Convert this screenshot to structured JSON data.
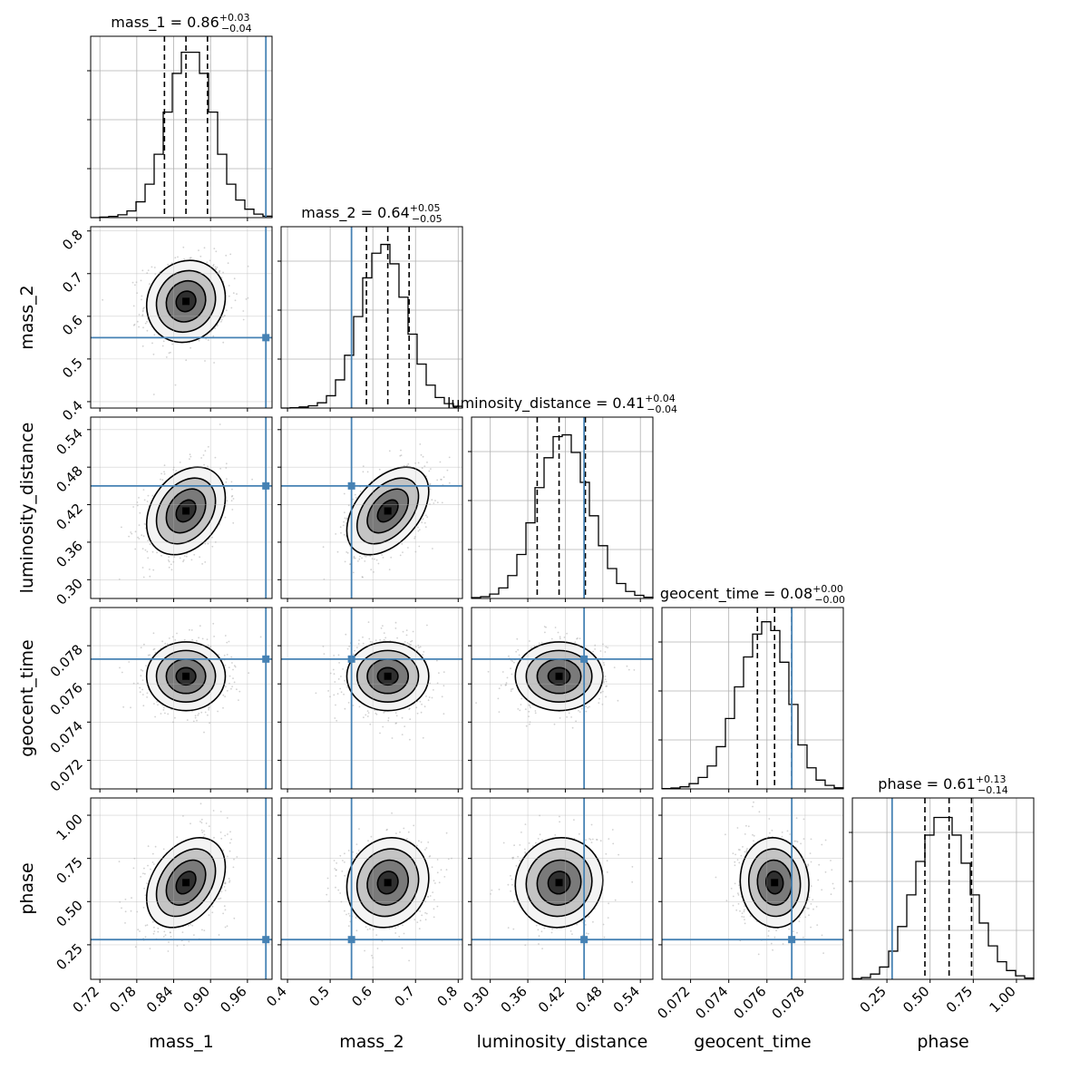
{
  "chart_data": {
    "type": "corner",
    "parameters": [
      {
        "key": "mass_1",
        "label": "mass_1",
        "title": "mass_1 = 0.86",
        "median": 0.86,
        "err_plus": "+0.03",
        "err_minus": "−0.04",
        "q_low": 0.825,
        "q_high": 0.895,
        "range": [
          0.705,
          1.0
        ],
        "ticks": [
          0.72,
          0.78,
          0.84,
          0.9,
          0.96
        ],
        "tick_labels": [
          "0.72",
          "0.78",
          "0.84",
          "0.90",
          "0.96"
        ],
        "truth": 0.99,
        "mean": 0.86,
        "sd": 0.032,
        "hist_mid": [
          0.0,
          0.003,
          0.007,
          0.016,
          0.038,
          0.09,
          0.19,
          0.36,
          0.6,
          0.82,
          0.94,
          0.94,
          0.82,
          0.6,
          0.36,
          0.19,
          0.1,
          0.048,
          0.02,
          0.008
        ]
      },
      {
        "key": "mass_2",
        "label": "mass_2",
        "title": "mass_2 = 0.64",
        "median": 0.635,
        "err_plus": "+0.05",
        "err_minus": "−0.05",
        "q_low": 0.585,
        "q_high": 0.685,
        "range": [
          0.385,
          0.81
        ],
        "ticks": [
          0.4,
          0.5,
          0.6,
          0.7,
          0.8
        ],
        "tick_labels": [
          "0.4",
          "0.5",
          "0.6",
          "0.7",
          "0.8"
        ],
        "truth": 0.55,
        "mean": 0.635,
        "sd": 0.048,
        "hist_mid": [
          0.0,
          0.002,
          0.006,
          0.013,
          0.03,
          0.07,
          0.16,
          0.3,
          0.52,
          0.74,
          0.88,
          0.93,
          0.82,
          0.63,
          0.42,
          0.25,
          0.13,
          0.06,
          0.025,
          0.01
        ]
      },
      {
        "key": "luminosity_distance",
        "label": "luminosity_distance",
        "title": "luminosity_distance = 0.41",
        "median": 0.41,
        "err_plus": "+0.04",
        "err_minus": "−0.04",
        "q_low": 0.375,
        "q_high": 0.452,
        "range": [
          0.27,
          0.56
        ],
        "ticks": [
          0.3,
          0.36,
          0.42,
          0.48,
          0.54
        ],
        "tick_labels": [
          "0.30",
          "0.36",
          "0.42",
          "0.48",
          "0.54"
        ],
        "truth": 0.45,
        "mean": 0.41,
        "sd": 0.035,
        "hist_mid": [
          0.005,
          0.01,
          0.025,
          0.06,
          0.13,
          0.25,
          0.43,
          0.63,
          0.8,
          0.92,
          0.93,
          0.83,
          0.66,
          0.47,
          0.3,
          0.17,
          0.085,
          0.04,
          0.018,
          0.007
        ]
      },
      {
        "key": "geocent_time",
        "label": "geocent_time",
        "title": "geocent_time = 0.08",
        "median": 0.0764,
        "err_plus": "+0.00",
        "err_minus": "−0.00",
        "q_low": 0.0755,
        "q_high": 0.0773,
        "range": [
          0.0705,
          0.08
        ],
        "ticks": [
          0.072,
          0.074,
          0.076,
          0.078
        ],
        "tick_labels": [
          "0.072",
          "0.074",
          "0.076",
          "0.078"
        ],
        "truth": 0.0773,
        "mean": 0.0764,
        "sd": 0.0009,
        "hist_mid": [
          0.002,
          0.005,
          0.012,
          0.03,
          0.065,
          0.13,
          0.24,
          0.4,
          0.58,
          0.75,
          0.88,
          0.95,
          0.9,
          0.72,
          0.48,
          0.25,
          0.12,
          0.05,
          0.02,
          0.006
        ]
      },
      {
        "key": "phase",
        "label": "phase",
        "title": "phase = 0.61",
        "median": 0.61,
        "err_plus": "+0.13",
        "err_minus": "−0.14",
        "q_low": 0.47,
        "q_high": 0.74,
        "range": [
          0.05,
          1.1
        ],
        "ticks": [
          0.25,
          0.5,
          0.75,
          1.0
        ],
        "tick_labels": [
          "0.25",
          "0.50",
          "0.75",
          "1.00"
        ],
        "truth": 0.28,
        "mean": 0.61,
        "sd": 0.13,
        "hist_mid": [
          0.004,
          0.01,
          0.03,
          0.07,
          0.16,
          0.3,
          0.48,
          0.67,
          0.82,
          0.92,
          0.92,
          0.82,
          0.66,
          0.48,
          0.32,
          0.19,
          0.1,
          0.05,
          0.02,
          0.007
        ]
      }
    ],
    "correlations": {
      "1-0": 0.1,
      "2-0": 0.3,
      "2-1": 0.45,
      "3-0": 0.0,
      "3-1": 0.0,
      "3-2": 0.0,
      "4-0": 0.35,
      "4-1": 0.1,
      "4-2": 0.05,
      "4-3": -0.05
    },
    "colors": {
      "truth": "#4682b4",
      "hist": "#000000",
      "contour": "#000000",
      "scatter": "#9a9a9a",
      "grid": "#b0b0b0"
    }
  }
}
